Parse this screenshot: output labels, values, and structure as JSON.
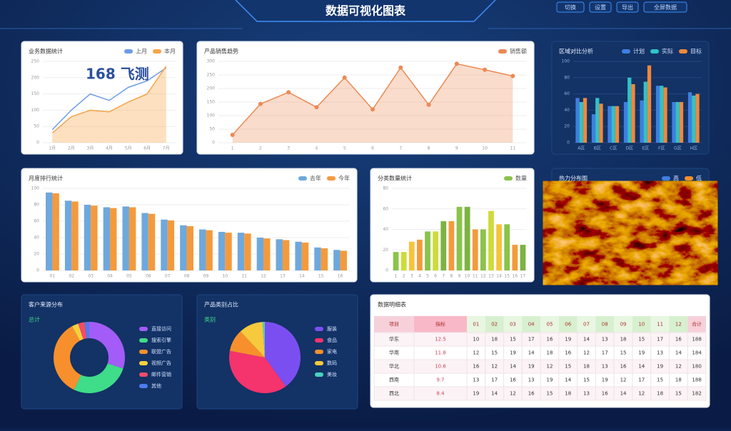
{
  "header": {
    "title": "数据可视化图表",
    "tools": [
      "切换",
      "设置",
      "导出",
      "全屏数据"
    ]
  },
  "chart_data": [
    {
      "type": "line",
      "title": "业务数据统计",
      "annotation": "168 飞测",
      "categories": [
        "1月",
        "2月",
        "3月",
        "4月",
        "5月",
        "6月",
        "7月"
      ],
      "series": [
        {
          "name": "上月",
          "color": "#6f9be6",
          "values": [
            40,
            100,
            150,
            130,
            170,
            190,
            230
          ]
        },
        {
          "name": "本月",
          "color": "#f5a54a",
          "area": true,
          "values": [
            30,
            80,
            100,
            95,
            125,
            150,
            235
          ]
        }
      ],
      "ylim": [
        0,
        250
      ],
      "yticks": [
        0,
        50,
        100,
        150,
        200,
        250
      ],
      "grid": true
    },
    {
      "type": "line",
      "title": "产品销售趋势",
      "categories": [
        "1",
        "2",
        "3",
        "4",
        "5",
        "6",
        "7",
        "8",
        "9",
        "10",
        "11"
      ],
      "series": [
        {
          "name": "销售额",
          "color": "#ea8a55",
          "area": true,
          "markers": true,
          "values": [
            29,
            143,
            186,
            131,
            240,
            123,
            277,
            140,
            291,
            269,
            246
          ]
        }
      ],
      "ylim": [
        0,
        300
      ],
      "yticks": [
        0,
        50,
        100,
        150,
        200,
        250,
        300
      ],
      "grid": true
    },
    {
      "type": "bar",
      "title": "区域对比分析",
      "categories": [
        "A区",
        "B区",
        "C区",
        "D区",
        "E区",
        "F区",
        "G区",
        "H区"
      ],
      "series": [
        {
          "name": "计划",
          "color": "#3f7fe0",
          "values": [
            55,
            35,
            45,
            50,
            52,
            70,
            50,
            62
          ]
        },
        {
          "name": "实际",
          "color": "#2fc3c8",
          "values": [
            50,
            55,
            45,
            80,
            75,
            70,
            50,
            58
          ]
        },
        {
          "name": "目标",
          "color": "#f0883a",
          "values": [
            55,
            48,
            45,
            72,
            95,
            68,
            50,
            60
          ]
        }
      ],
      "ylim": [
        0,
        100
      ],
      "yticks": [
        0,
        20,
        40,
        60,
        80,
        100
      ],
      "grid": true
    },
    {
      "type": "bar",
      "title": "月度排行统计",
      "categories": [
        "01",
        "02",
        "03",
        "04",
        "05",
        "06",
        "07",
        "08",
        "09",
        "10",
        "11",
        "12",
        "13",
        "14",
        "15",
        "16"
      ],
      "series": [
        {
          "name": "去年",
          "color": "#6fa8dc",
          "values": [
            95,
            85,
            80,
            77,
            78,
            70,
            62,
            55,
            50,
            47,
            46,
            40,
            38,
            35,
            28,
            25
          ]
        },
        {
          "name": "今年",
          "color": "#f59a3c",
          "values": [
            94,
            84,
            79,
            76,
            77,
            69,
            61,
            54,
            49,
            46,
            45,
            39,
            37,
            34,
            27,
            24
          ]
        }
      ],
      "ylim": [
        0,
        100
      ],
      "yticks": [
        0,
        20,
        40,
        60,
        80,
        100
      ],
      "grid": true
    },
    {
      "type": "bar",
      "title": "分类数量统计",
      "categories": [
        "1",
        "2",
        "3",
        "4",
        "5",
        "6",
        "7",
        "8",
        "9",
        "10",
        "11",
        "12",
        "13",
        "14",
        "15",
        "16",
        "17"
      ],
      "series": [
        {
          "name": "数量",
          "color": "#8bc34a",
          "colors": [
            "#8bc34a",
            "#cddc39",
            "#f7c33c",
            "#f59a3c",
            "#8bc34a",
            "#cddc39",
            "#7cb342",
            "#f59a3c",
            "#8bc34a",
            "#7cb342",
            "#f59a3c",
            "#8bc34a",
            "#cddc39",
            "#f7c33c",
            "#8bc34a",
            "#f59a3c",
            "#7cb342"
          ],
          "values": [
            18,
            18,
            28,
            30,
            38,
            38,
            48,
            48,
            62,
            62,
            40,
            40,
            58,
            45,
            45,
            25,
            25
          ]
        }
      ],
      "ylim": [
        0,
        80
      ],
      "yticks": [
        0,
        20,
        40,
        60,
        80
      ],
      "grid": true
    },
    {
      "type": "image",
      "title": "热力分布图",
      "legend": [
        "高",
        "低"
      ]
    },
    {
      "type": "pie",
      "title": "客户来源分布",
      "subtitle": "总计",
      "donut": true,
      "categories": [
        "直接访问",
        "搜索引擎",
        "联盟广告",
        "视频广告",
        "邮件营销",
        "其他"
      ],
      "colors": [
        "#a35cf7",
        "#3fdc8a",
        "#f7902c",
        "#f5d03c",
        "#ef4d6a",
        "#4c7cf0"
      ],
      "values": [
        30,
        27,
        35,
        3,
        3,
        2
      ]
    },
    {
      "type": "pie",
      "title": "产品类别占比",
      "subtitle": "类别",
      "donut": false,
      "categories": [
        "服装",
        "食品",
        "家电",
        "数码",
        "美妆"
      ],
      "colors": [
        "#7b4ef2",
        "#f5336d",
        "#f7902c",
        "#f7c93c",
        "#4ad0c0"
      ],
      "values": [
        40,
        38,
        10,
        11,
        1
      ]
    }
  ],
  "table": {
    "title": "数据明细表",
    "columns": [
      "项目",
      "指标",
      "01",
      "02",
      "03",
      "04",
      "05",
      "06",
      "07",
      "08",
      "09",
      "10",
      "11",
      "12",
      "合计"
    ],
    "rows": [
      [
        "华东",
        "12.5",
        "10",
        "18",
        "15",
        "17",
        "16",
        "19",
        "14",
        "13",
        "18",
        "15",
        "17",
        "16",
        "188"
      ],
      [
        "华南",
        "11.8",
        "12",
        "15",
        "19",
        "14",
        "18",
        "16",
        "12",
        "17",
        "15",
        "19",
        "13",
        "14",
        "184"
      ],
      [
        "华北",
        "10.6",
        "16",
        "12",
        "14",
        "19",
        "12",
        "15",
        "18",
        "13",
        "16",
        "14",
        "19",
        "12",
        "180"
      ],
      [
        "西南",
        "9.7",
        "13",
        "17",
        "16",
        "13",
        "19",
        "14",
        "15",
        "19",
        "12",
        "17",
        "15",
        "18",
        "188"
      ],
      [
        "西北",
        "8.4",
        "19",
        "14",
        "12",
        "16",
        "15",
        "18",
        "13",
        "16",
        "14",
        "12",
        "18",
        "15",
        "182"
      ]
    ]
  }
}
